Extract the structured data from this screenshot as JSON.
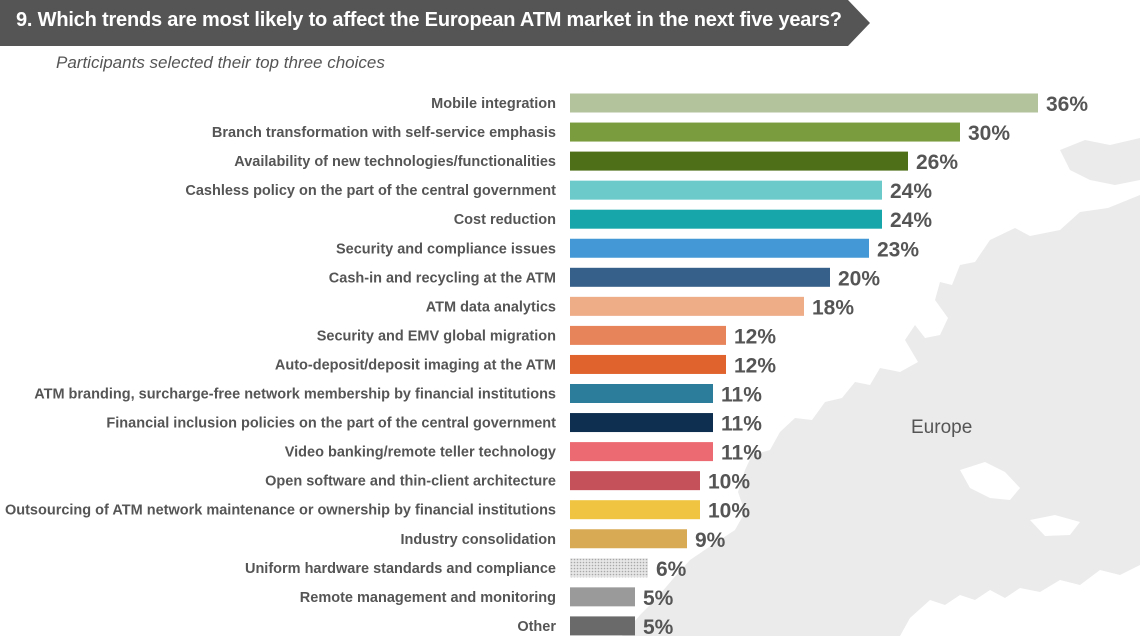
{
  "header": {
    "title": "9. Which trends are most likely to affect the European ATM market in the next five years?",
    "bg_color": "#555555"
  },
  "subtitle": "Participants selected their top three choices",
  "region_label": "Europe",
  "chart_data": {
    "type": "bar",
    "orientation": "horizontal",
    "title": "9. Which trends are most likely to affect the European ATM market in the next five years?",
    "subtitle": "Participants selected their top three choices",
    "value_suffix": "%",
    "xlim": [
      0,
      36
    ],
    "grid": false,
    "categories": [
      "Mobile integration",
      "Branch transformation with self-service emphasis",
      "Availability of new technologies/functionalities",
      "Cashless policy on the part of the central government",
      "Cost reduction",
      "Security and compliance issues",
      "Cash-in and recycling at the ATM",
      "ATM data analytics",
      "Security and EMV global migration",
      "Auto-deposit/deposit imaging at the ATM",
      "ATM branding, surcharge-free network membership by financial institutions",
      "Financial inclusion policies on the part of the central government",
      "Video banking/remote teller technology",
      "Open software and thin-client architecture",
      "Outsourcing of ATM network maintenance or ownership by financial institutions",
      "Industry consolidation",
      "Uniform hardware standards and compliance",
      "Remote management and monitoring",
      "Other"
    ],
    "values": [
      36,
      30,
      26,
      24,
      24,
      23,
      20,
      18,
      12,
      12,
      11,
      11,
      11,
      10,
      10,
      9,
      6,
      5,
      5
    ],
    "labels": [
      "36%",
      "30%",
      "26%",
      "24%",
      "24%",
      "23%",
      "20%",
      "18%",
      "12%",
      "12%",
      "11%",
      "11%",
      "11%",
      "10%",
      "10%",
      "9%",
      "6%",
      "5%",
      "5%"
    ],
    "colors": [
      "#b3c39c",
      "#7a9c3e",
      "#4e6e18",
      "#6ccacb",
      "#17a7ab",
      "#4498d6",
      "#365f89",
      "#eeac87",
      "#e8845a",
      "#e0622d",
      "#2c7c9c",
      "#0e2f4f",
      "#ec6b72",
      "#c5525b",
      "#f0c440",
      "#d8aa54",
      "pattern-dots",
      "#9a9a9a",
      "#6a6a6a"
    ]
  }
}
